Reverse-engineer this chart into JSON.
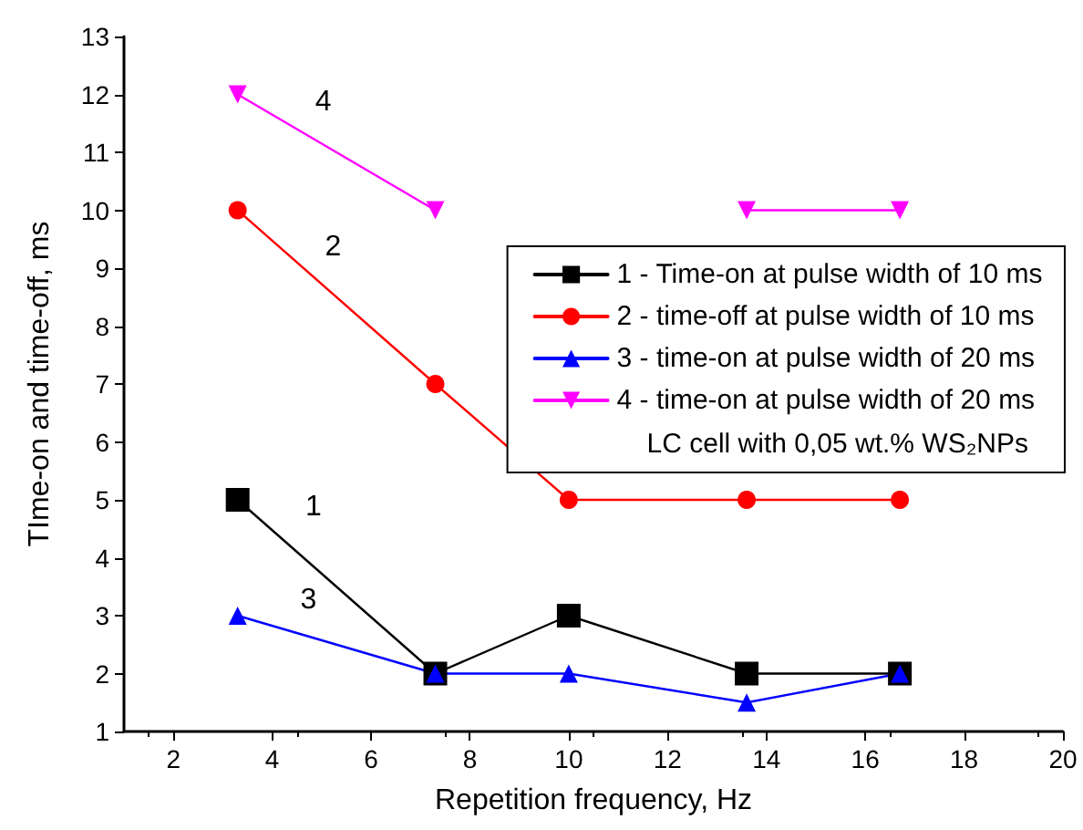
{
  "chart_data": {
    "type": "line",
    "xlabel": "Repetition frequency, Hz",
    "ylabel": "TIme-on and time-off, ms",
    "x": [
      3.3,
      7.3,
      10,
      13.6,
      16.7
    ],
    "series": [
      {
        "name": "1 - Time-on at pulse width of 10 ms",
        "color": "#000000",
        "marker": "square",
        "values": [
          5,
          2,
          3,
          2,
          2
        ]
      },
      {
        "name": "2 - time-off at pulse width of 10 ms",
        "color": "#ff0000",
        "marker": "circle",
        "values": [
          10,
          7,
          5,
          5,
          5
        ]
      },
      {
        "name": "3 - time-on at pulse width of 20 ms",
        "color": "#0000ff",
        "marker": "triangle",
        "values": [
          3,
          2,
          2,
          1.5,
          2
        ]
      },
      {
        "name": "4 - time-on at pulse width of 20 ms",
        "color": "#ff00ff",
        "marker": "triangle-down",
        "values": [
          12,
          10,
          null,
          10,
          10
        ]
      }
    ],
    "legend_title": "LC cell with 0,05 wt.% WS₂NPs",
    "annotations": [
      {
        "text": "1",
        "x": 4.3,
        "y": 4.3
      },
      {
        "text": "2",
        "x": 4.7,
        "y": 8.8
      },
      {
        "text": "3",
        "x": 4.2,
        "y": 2.7
      },
      {
        "text": "4",
        "x": 4.5,
        "y": 11.3
      }
    ],
    "xlim": [
      1,
      20
    ],
    "xticks": [
      2,
      4,
      6,
      8,
      10,
      12,
      14,
      16,
      18,
      20
    ],
    "ylim": [
      1,
      13
    ],
    "yticks": [
      1,
      2,
      3,
      4,
      5,
      6,
      7,
      8,
      9,
      10,
      11,
      12,
      13
    ],
    "grid": false,
    "legend": "right",
    "line_style": "solid"
  }
}
